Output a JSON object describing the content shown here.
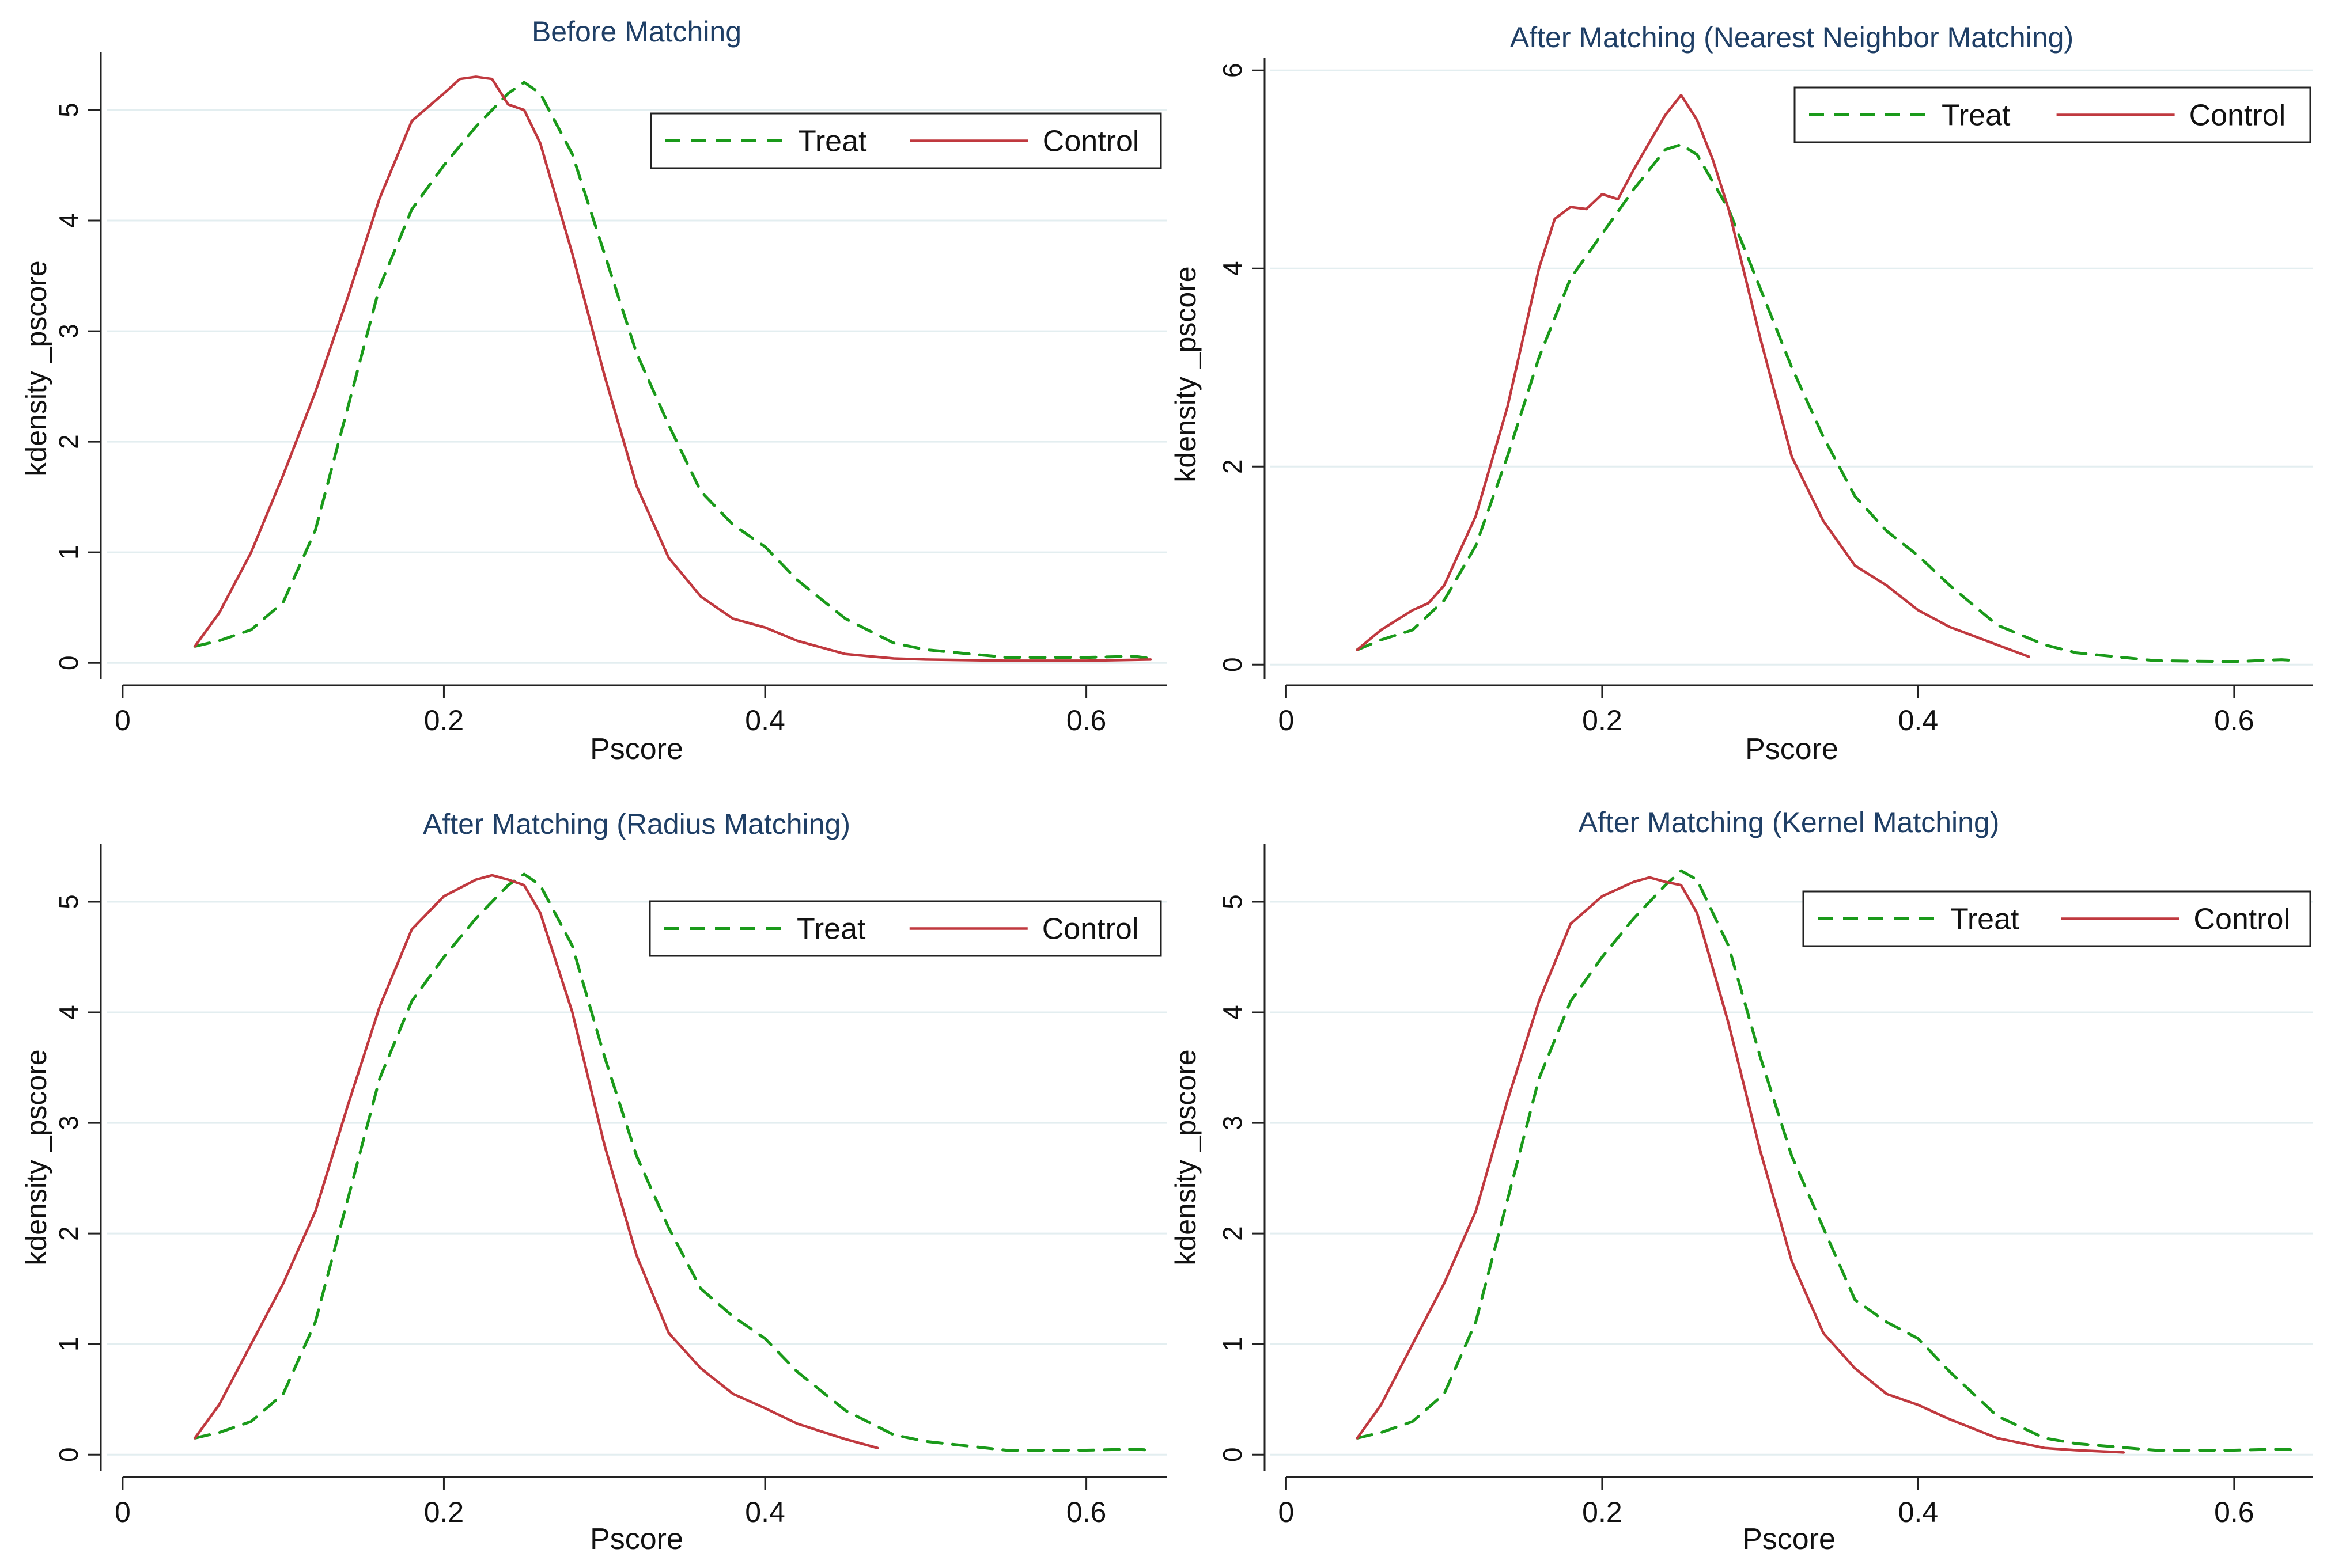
{
  "colors": {
    "treat": "#1a9a1a",
    "control": "#c0393f",
    "title": "#1f3f66",
    "grid": "#e3eef0",
    "axis": "#222222",
    "text": "#111111"
  },
  "chart_data": [
    {
      "type": "line",
      "title": "Before Matching",
      "xlabel": "Pscore",
      "ylabel": "kdensity _pscore",
      "xlim": [
        -0.01,
        0.65
      ],
      "ylim": [
        -0.15,
        5.5
      ],
      "xticks": [
        0,
        0.2,
        0.4,
        0.6
      ],
      "xtick_labels": [
        "0",
        "0.2",
        "0.4",
        "0.6"
      ],
      "yticks": [
        0,
        1,
        2,
        3,
        4,
        5
      ],
      "ytick_labels": [
        "0",
        "1",
        "2",
        "3",
        "4",
        "5"
      ],
      "grid": true,
      "legend_position": "top-right",
      "series": [
        {
          "name": "Treat",
          "style": "dashed",
          "x": [
            0.045,
            0.06,
            0.08,
            0.1,
            0.12,
            0.14,
            0.16,
            0.18,
            0.2,
            0.22,
            0.24,
            0.25,
            0.26,
            0.28,
            0.3,
            0.32,
            0.34,
            0.36,
            0.38,
            0.4,
            0.42,
            0.45,
            0.48,
            0.5,
            0.55,
            0.6,
            0.63,
            0.64
          ],
          "y": [
            0.15,
            0.2,
            0.3,
            0.55,
            1.2,
            2.3,
            3.4,
            4.1,
            4.5,
            4.85,
            5.15,
            5.25,
            5.15,
            4.6,
            3.7,
            2.8,
            2.15,
            1.55,
            1.25,
            1.05,
            0.75,
            0.4,
            0.18,
            0.12,
            0.05,
            0.05,
            0.06,
            0.04
          ]
        },
        {
          "name": "Control",
          "style": "solid",
          "x": [
            0.045,
            0.06,
            0.08,
            0.1,
            0.12,
            0.14,
            0.16,
            0.18,
            0.2,
            0.21,
            0.22,
            0.23,
            0.24,
            0.25,
            0.26,
            0.28,
            0.3,
            0.32,
            0.34,
            0.36,
            0.38,
            0.4,
            0.42,
            0.45,
            0.48,
            0.5,
            0.55,
            0.6,
            0.64
          ],
          "y": [
            0.15,
            0.45,
            1.0,
            1.7,
            2.45,
            3.3,
            4.2,
            4.9,
            5.15,
            5.28,
            5.3,
            5.28,
            5.05,
            5.0,
            4.7,
            3.7,
            2.6,
            1.6,
            0.95,
            0.6,
            0.4,
            0.32,
            0.2,
            0.08,
            0.04,
            0.03,
            0.02,
            0.02,
            0.03
          ]
        }
      ]
    },
    {
      "type": "line",
      "title": "After Matching (Nearest Neighbor Matching)",
      "xlabel": "Pscore",
      "ylabel": "kdensity _pscore",
      "xlim": [
        -0.01,
        0.65
      ],
      "ylim": [
        -0.15,
        6.1
      ],
      "xticks": [
        0,
        0.2,
        0.4,
        0.6
      ],
      "xtick_labels": [
        "0",
        "0.2",
        "0.4",
        "0.6"
      ],
      "yticks": [
        0,
        2,
        4,
        6
      ],
      "ytick_labels": [
        "0",
        "2",
        "4",
        "6"
      ],
      "grid": true,
      "legend_position": "top-right",
      "series": [
        {
          "name": "Treat",
          "style": "dashed",
          "x": [
            0.045,
            0.06,
            0.08,
            0.1,
            0.12,
            0.14,
            0.16,
            0.18,
            0.2,
            0.22,
            0.24,
            0.25,
            0.26,
            0.28,
            0.3,
            0.32,
            0.34,
            0.36,
            0.38,
            0.4,
            0.42,
            0.45,
            0.48,
            0.5,
            0.55,
            0.6,
            0.63,
            0.64
          ],
          "y": [
            0.15,
            0.25,
            0.35,
            0.65,
            1.2,
            2.1,
            3.1,
            3.9,
            4.35,
            4.8,
            5.2,
            5.25,
            5.15,
            4.6,
            3.8,
            3.0,
            2.3,
            1.7,
            1.35,
            1.1,
            0.8,
            0.4,
            0.2,
            0.12,
            0.04,
            0.03,
            0.05,
            0.04
          ]
        },
        {
          "name": "Control",
          "style": "solid",
          "x": [
            0.045,
            0.06,
            0.08,
            0.09,
            0.1,
            0.12,
            0.14,
            0.16,
            0.17,
            0.18,
            0.19,
            0.2,
            0.21,
            0.22,
            0.24,
            0.25,
            0.26,
            0.27,
            0.28,
            0.3,
            0.32,
            0.34,
            0.36,
            0.38,
            0.4,
            0.42,
            0.45,
            0.47
          ],
          "y": [
            0.15,
            0.35,
            0.55,
            0.62,
            0.8,
            1.5,
            2.6,
            4.0,
            4.5,
            4.62,
            4.6,
            4.75,
            4.7,
            5.0,
            5.55,
            5.75,
            5.5,
            5.1,
            4.6,
            3.3,
            2.1,
            1.45,
            1.0,
            0.8,
            0.55,
            0.38,
            0.2,
            0.08
          ]
        }
      ]
    },
    {
      "type": "line",
      "title": "After Matching (Radius Matching)",
      "xlabel": "Pscore",
      "ylabel": "kdensity _pscore",
      "xlim": [
        -0.01,
        0.65
      ],
      "ylim": [
        -0.15,
        5.5
      ],
      "xticks": [
        0,
        0.2,
        0.4,
        0.6
      ],
      "xtick_labels": [
        "0",
        "0.2",
        "0.4",
        "0.6"
      ],
      "yticks": [
        0,
        1,
        2,
        3,
        4,
        5
      ],
      "ytick_labels": [
        "0",
        "1",
        "2",
        "3",
        "4",
        "5"
      ],
      "grid": true,
      "legend_position": "top-right",
      "series": [
        {
          "name": "Treat",
          "style": "dashed",
          "x": [
            0.045,
            0.06,
            0.08,
            0.1,
            0.12,
            0.14,
            0.16,
            0.18,
            0.2,
            0.22,
            0.24,
            0.25,
            0.26,
            0.28,
            0.3,
            0.32,
            0.34,
            0.36,
            0.38,
            0.4,
            0.42,
            0.45,
            0.48,
            0.5,
            0.55,
            0.6,
            0.63,
            0.64
          ],
          "y": [
            0.15,
            0.2,
            0.3,
            0.55,
            1.2,
            2.3,
            3.4,
            4.1,
            4.5,
            4.85,
            5.15,
            5.25,
            5.15,
            4.6,
            3.6,
            2.7,
            2.05,
            1.5,
            1.25,
            1.05,
            0.75,
            0.4,
            0.18,
            0.12,
            0.04,
            0.04,
            0.05,
            0.04
          ]
        },
        {
          "name": "Control",
          "style": "solid",
          "x": [
            0.045,
            0.06,
            0.08,
            0.1,
            0.12,
            0.14,
            0.16,
            0.18,
            0.2,
            0.22,
            0.23,
            0.24,
            0.25,
            0.26,
            0.28,
            0.3,
            0.32,
            0.34,
            0.36,
            0.38,
            0.4,
            0.42,
            0.45,
            0.47
          ],
          "y": [
            0.15,
            0.45,
            1.0,
            1.55,
            2.2,
            3.15,
            4.05,
            4.75,
            5.05,
            5.2,
            5.24,
            5.2,
            5.15,
            4.9,
            4.0,
            2.8,
            1.8,
            1.1,
            0.78,
            0.55,
            0.42,
            0.28,
            0.14,
            0.06
          ]
        }
      ]
    },
    {
      "type": "line",
      "title": "After Matching (Kernel Matching)",
      "xlabel": "Pscore",
      "ylabel": "kdensity _pscore",
      "xlim": [
        -0.01,
        0.65
      ],
      "ylim": [
        -0.15,
        5.5
      ],
      "xticks": [
        0,
        0.2,
        0.4,
        0.6
      ],
      "xtick_labels": [
        "0",
        "0.2",
        "0.4",
        "0.6"
      ],
      "yticks": [
        0,
        1,
        2,
        3,
        4,
        5
      ],
      "ytick_labels": [
        "0",
        "1",
        "2",
        "3",
        "4",
        "5"
      ],
      "grid": true,
      "legend_position": "top-right",
      "series": [
        {
          "name": "Treat",
          "style": "dashed",
          "x": [
            0.045,
            0.06,
            0.08,
            0.1,
            0.12,
            0.14,
            0.16,
            0.18,
            0.2,
            0.22,
            0.24,
            0.25,
            0.26,
            0.28,
            0.3,
            0.32,
            0.34,
            0.36,
            0.38,
            0.4,
            0.42,
            0.45,
            0.48,
            0.5,
            0.55,
            0.6,
            0.63,
            0.64
          ],
          "y": [
            0.15,
            0.2,
            0.3,
            0.55,
            1.2,
            2.3,
            3.4,
            4.1,
            4.5,
            4.85,
            5.15,
            5.28,
            5.2,
            4.6,
            3.6,
            2.7,
            2.05,
            1.4,
            1.2,
            1.05,
            0.75,
            0.35,
            0.15,
            0.1,
            0.04,
            0.04,
            0.05,
            0.04
          ]
        },
        {
          "name": "Control",
          "style": "solid",
          "x": [
            0.045,
            0.06,
            0.08,
            0.1,
            0.12,
            0.14,
            0.16,
            0.18,
            0.2,
            0.22,
            0.23,
            0.24,
            0.25,
            0.26,
            0.28,
            0.3,
            0.32,
            0.34,
            0.36,
            0.38,
            0.4,
            0.42,
            0.45,
            0.48,
            0.5,
            0.53
          ],
          "y": [
            0.15,
            0.45,
            1.0,
            1.55,
            2.2,
            3.2,
            4.1,
            4.8,
            5.05,
            5.18,
            5.22,
            5.18,
            5.15,
            4.9,
            3.9,
            2.75,
            1.75,
            1.1,
            0.78,
            0.55,
            0.45,
            0.32,
            0.15,
            0.06,
            0.04,
            0.02
          ]
        }
      ]
    }
  ]
}
